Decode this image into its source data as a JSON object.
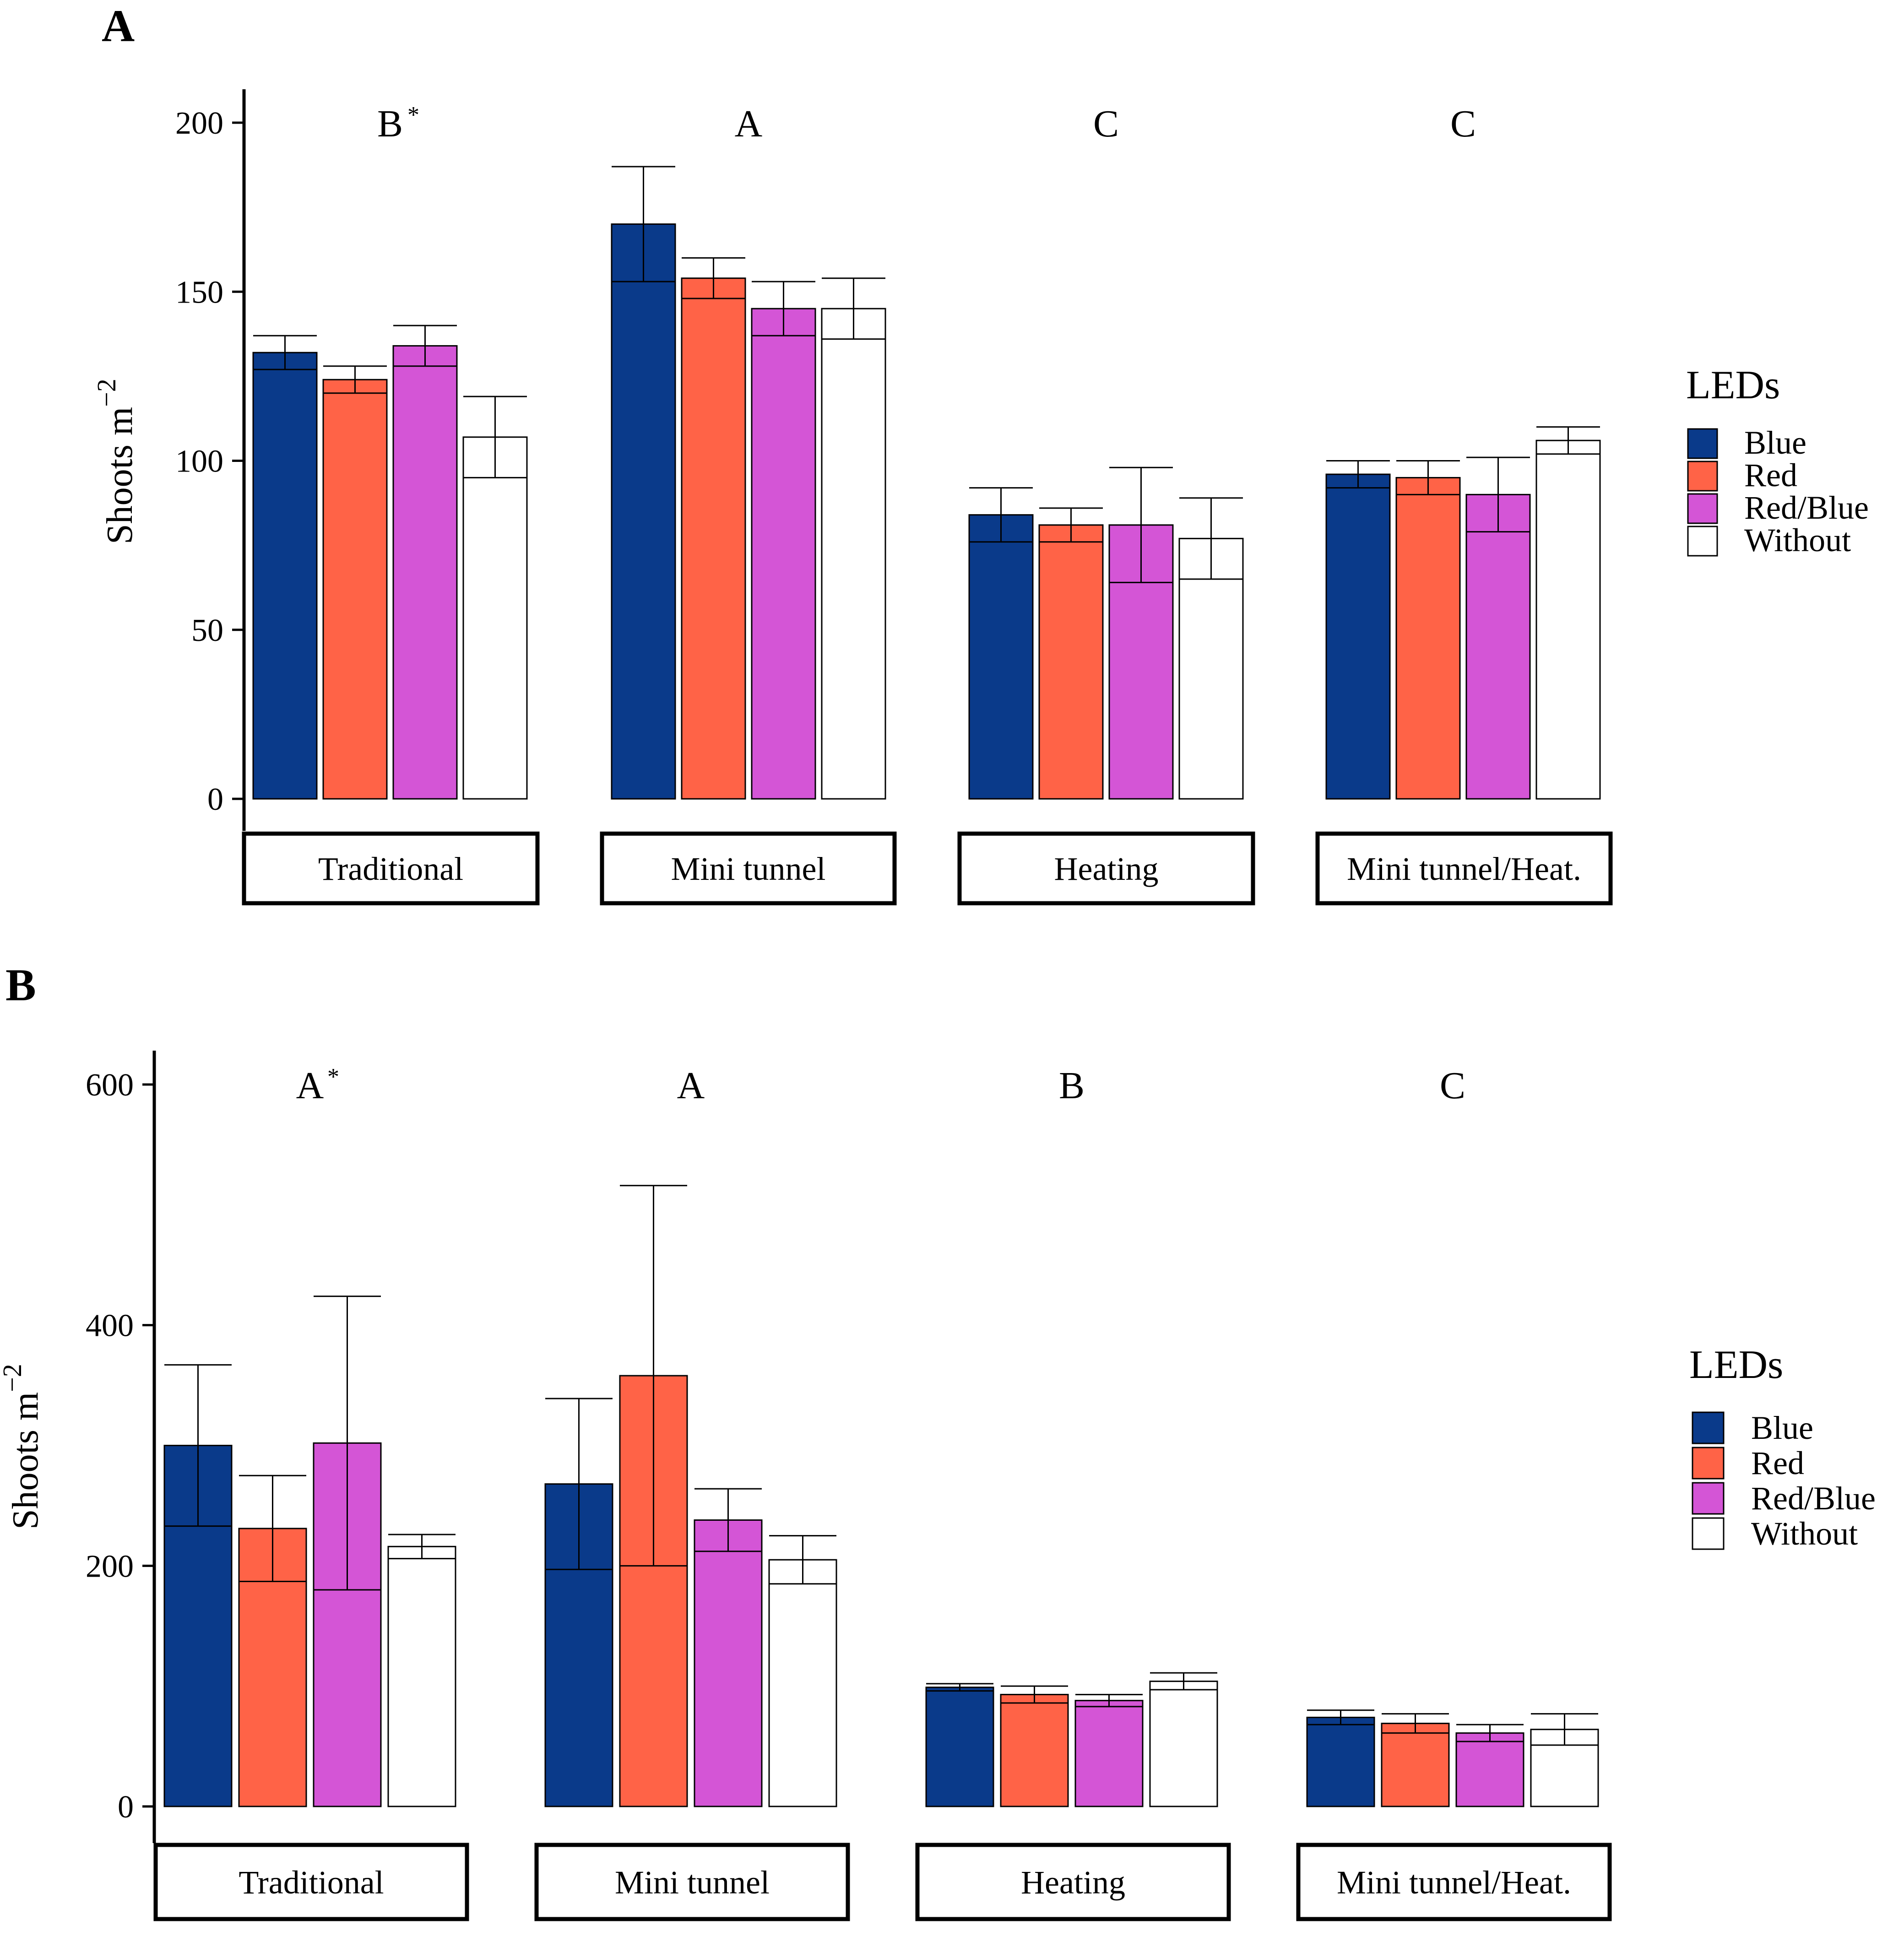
{
  "chart_data": [
    {
      "type": "bar",
      "panel": "A",
      "ylabel": "Shoots m",
      "ylabel_sup": "−2",
      "ylim": [
        0,
        200
      ],
      "yticks": [
        "0",
        "50",
        "100",
        "150",
        "200"
      ],
      "facets": [
        "Traditional",
        "Mini tunnel",
        "Heating",
        "Mini tunnel/Heat."
      ],
      "group_letters": [
        "B",
        "A",
        "C",
        "C"
      ],
      "star_marks": [
        "*",
        "",
        "",
        ""
      ],
      "legend_title": "LEDs",
      "series": [
        {
          "name": "Blue",
          "color": "#0a3a8a",
          "values": [
            132,
            170,
            84,
            96
          ],
          "errors": [
            5,
            17,
            8,
            4
          ]
        },
        {
          "name": "Red",
          "color": "#ff6347",
          "values": [
            124,
            154,
            81,
            95
          ],
          "errors": [
            4,
            6,
            5,
            5
          ]
        },
        {
          "name": "Red/Blue",
          "color": "#d455d6",
          "values": [
            134,
            145,
            81,
            90
          ],
          "errors": [
            6,
            8,
            17,
            11
          ]
        },
        {
          "name": "Without",
          "color": "#ffffff",
          "values": [
            107,
            145,
            77,
            106
          ],
          "errors": [
            12,
            9,
            12,
            4
          ]
        }
      ]
    },
    {
      "type": "bar",
      "panel": "B",
      "ylabel": "Shoots m",
      "ylabel_sup": "−2",
      "ylim": [
        0,
        600
      ],
      "yticks": [
        "0",
        "200",
        "400",
        "600"
      ],
      "facets": [
        "Traditional",
        "Mini tunnel",
        "Heating",
        "Mini tunnel/Heat."
      ],
      "group_letters": [
        "A",
        "A",
        "B",
        "C"
      ],
      "star_marks": [
        "*",
        "",
        "",
        ""
      ],
      "legend_title": "LEDs",
      "series": [
        {
          "name": "Blue",
          "color": "#0a3a8a",
          "values": [
            300,
            268,
            99,
            74
          ],
          "errors": [
            67,
            71,
            3,
            6
          ]
        },
        {
          "name": "Red",
          "color": "#ff6347",
          "values": [
            231,
            358,
            93,
            69
          ],
          "errors": [
            44,
            158,
            7,
            8
          ]
        },
        {
          "name": "Red/Blue",
          "color": "#d455d6",
          "values": [
            302,
            238,
            88,
            61
          ],
          "errors": [
            122,
            26,
            5,
            7
          ]
        },
        {
          "name": "Without",
          "color": "#ffffff",
          "values": [
            216,
            205,
            104,
            64
          ],
          "errors": [
            10,
            20,
            7,
            13
          ]
        }
      ]
    }
  ]
}
